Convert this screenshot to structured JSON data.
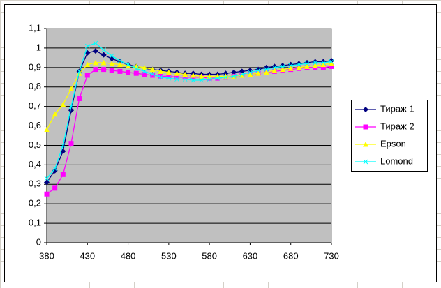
{
  "chart_data": {
    "type": "line",
    "x": [
      380,
      390,
      400,
      410,
      420,
      430,
      440,
      450,
      460,
      470,
      480,
      490,
      500,
      510,
      520,
      530,
      540,
      550,
      560,
      570,
      580,
      590,
      600,
      610,
      620,
      630,
      640,
      650,
      660,
      670,
      680,
      690,
      700,
      710,
      720,
      730
    ],
    "series": [
      {
        "name": "Тираж 1",
        "color": "#000080",
        "marker": "diamond",
        "values": [
          0.31,
          0.37,
          0.47,
          0.68,
          0.88,
          0.975,
          0.985,
          0.965,
          0.945,
          0.93,
          0.915,
          0.905,
          0.895,
          0.89,
          0.885,
          0.88,
          0.875,
          0.87,
          0.87,
          0.865,
          0.865,
          0.865,
          0.87,
          0.875,
          0.88,
          0.885,
          0.89,
          0.9,
          0.905,
          0.91,
          0.915,
          0.92,
          0.925,
          0.93,
          0.93,
          0.935
        ]
      },
      {
        "name": "Тираж 2",
        "color": "#ff00ff",
        "marker": "square",
        "values": [
          0.25,
          0.28,
          0.35,
          0.51,
          0.74,
          0.86,
          0.89,
          0.89,
          0.885,
          0.88,
          0.875,
          0.87,
          0.865,
          0.86,
          0.855,
          0.855,
          0.85,
          0.85,
          0.85,
          0.85,
          0.845,
          0.845,
          0.85,
          0.855,
          0.86,
          0.865,
          0.87,
          0.875,
          0.88,
          0.885,
          0.89,
          0.895,
          0.9,
          0.9,
          0.9,
          0.905
        ]
      },
      {
        "name": "Epson",
        "color": "#ffff00",
        "marker": "triangle",
        "values": [
          0.58,
          0.66,
          0.71,
          0.79,
          0.87,
          0.915,
          0.925,
          0.925,
          0.92,
          0.915,
          0.91,
          0.905,
          0.9,
          0.89,
          0.88,
          0.875,
          0.87,
          0.865,
          0.86,
          0.855,
          0.855,
          0.855,
          0.855,
          0.855,
          0.86,
          0.865,
          0.87,
          0.875,
          0.885,
          0.89,
          0.895,
          0.9,
          0.905,
          0.91,
          0.915,
          0.92
        ]
      },
      {
        "name": "Lomond",
        "color": "#00ffff",
        "marker": "x",
        "values": [
          0.33,
          0.38,
          0.5,
          0.7,
          0.88,
          1.01,
          1.025,
          0.99,
          0.96,
          0.935,
          0.915,
          0.895,
          0.88,
          0.865,
          0.85,
          0.845,
          0.84,
          0.84,
          0.835,
          0.835,
          0.84,
          0.845,
          0.85,
          0.855,
          0.865,
          0.875,
          0.885,
          0.89,
          0.9,
          0.905,
          0.91,
          0.915,
          0.92,
          0.925,
          0.925,
          0.93
        ]
      }
    ],
    "xlim": [
      380,
      730
    ],
    "xticks": [
      380,
      430,
      480,
      530,
      580,
      630,
      680,
      730
    ],
    "ylim": [
      0,
      1.1
    ],
    "yticks": [
      0,
      {
        "value": 0.1,
        "label": "0,1"
      },
      {
        "value": 0.2,
        "label": "0,2"
      },
      {
        "value": 0.3,
        "label": "0,3"
      },
      {
        "value": 0.4,
        "label": "0,4"
      },
      {
        "value": 0.5,
        "label": "0,5"
      },
      {
        "value": 0.6,
        "label": "0,6"
      },
      {
        "value": 0.7,
        "label": "0,7"
      },
      {
        "value": 0.8,
        "label": "0,8"
      },
      {
        "value": 0.9,
        "label": "0,9"
      },
      1,
      {
        "value": 1.1,
        "label": "1,1"
      }
    ],
    "grid": true,
    "legend": "right",
    "plot_background": "#c0c0c0"
  }
}
